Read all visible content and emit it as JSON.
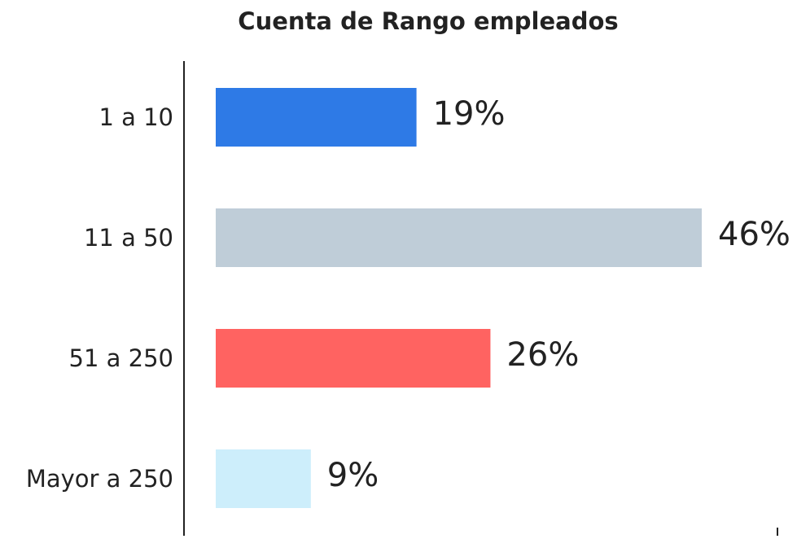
{
  "chart_data": {
    "type": "bar",
    "orientation": "horizontal",
    "title": "Cuenta de Rango empleados",
    "categories": [
      "1 a 10",
      "11 a 50",
      "51 a 250",
      "Mayor a 250"
    ],
    "values": [
      19,
      46,
      26,
      9
    ],
    "value_labels": [
      "19%",
      "46%",
      "26%",
      "9%"
    ],
    "colors": [
      "#2e7ae6",
      "#bfcdd8",
      "#ff6361",
      "#cdeefb"
    ]
  }
}
